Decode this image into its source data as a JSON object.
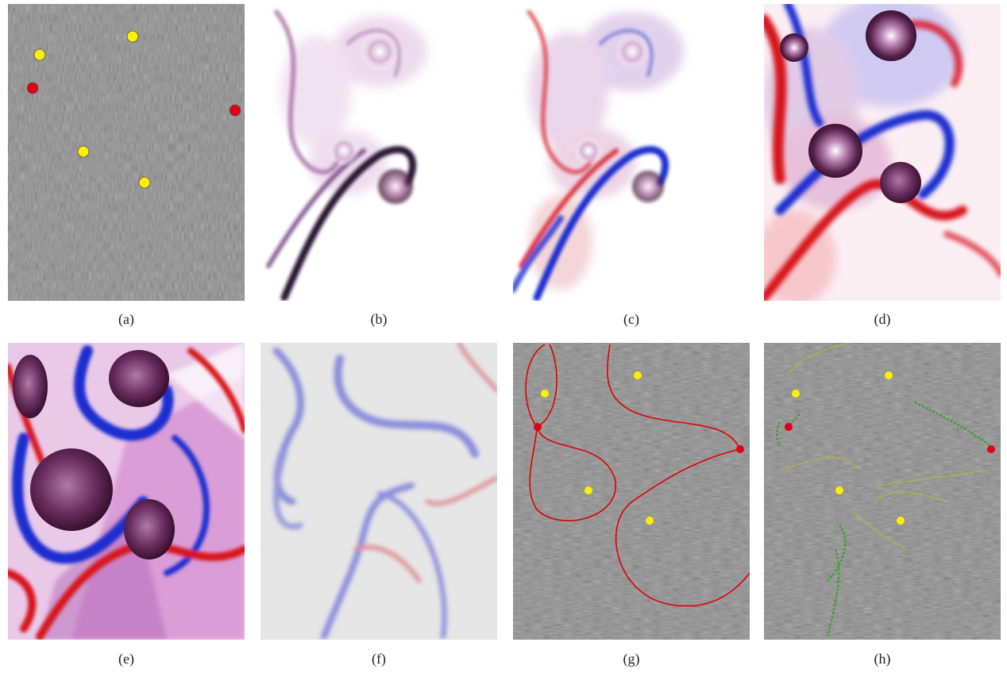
{
  "figure": {
    "panels": [
      {
        "label": "(a)",
        "kind": "lic-with-critical-points"
      },
      {
        "label": "(b)",
        "kind": "scalar-field-purple"
      },
      {
        "label": "(c)",
        "kind": "scalar-field-red-blue"
      },
      {
        "label": "(d)",
        "kind": "scalar-field-red-blue-strong"
      },
      {
        "label": "(e)",
        "kind": "scalar-field-segmented"
      },
      {
        "label": "(f)",
        "kind": "ridge-field-light"
      },
      {
        "label": "(g)",
        "kind": "lic-with-separatrices-red"
      },
      {
        "label": "(h)",
        "kind": "lic-with-ridges-green-yellow"
      }
    ],
    "colors": {
      "lic_gray": "#7a7a7a",
      "center_point": "#ffee00",
      "saddle_point": "#e0001b",
      "positive": "#d8141e",
      "negative": "#1d2fd0",
      "core": "#5a2350",
      "separatrix": "#dd0000",
      "ridge_green": "#3aa12e",
      "ridge_yellow": "#c8c800"
    }
  }
}
